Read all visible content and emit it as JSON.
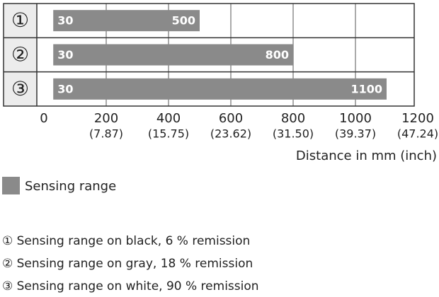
{
  "chart_data": {
    "type": "range-bar",
    "categories": [
      "①",
      "②",
      "③"
    ],
    "series": [
      {
        "name": "Sensing range",
        "color": "#8a8a8a",
        "starts": [
          30,
          30,
          30
        ],
        "values": [
          500,
          800,
          1100
        ]
      }
    ],
    "xlim": [
      0,
      1200
    ],
    "xticks": [
      0,
      200,
      400,
      600,
      800,
      1000,
      1200
    ],
    "xtick_sublabels": [
      null,
      "(7.87)",
      "(15.75)",
      "(23.62)",
      "(31.50)",
      "(39.37)",
      "(47.24)"
    ],
    "xlabel": "Distance in mm (inch)",
    "grid": true,
    "notes": [
      "① Sensing range on black, 6 % remission",
      "② Sensing range on gray, 18 % remission",
      "③ Sensing range on white, 90 % remission"
    ]
  }
}
